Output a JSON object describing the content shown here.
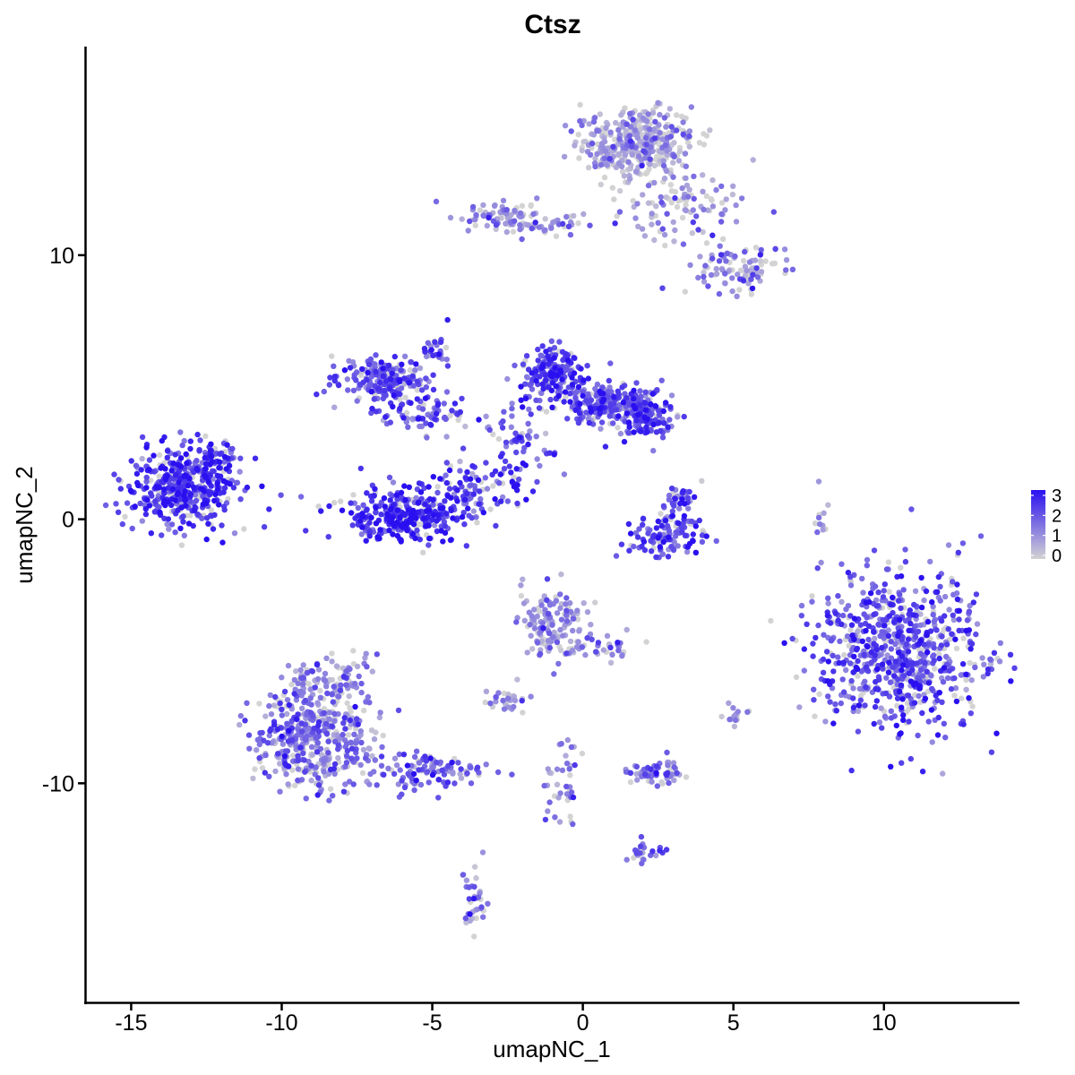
{
  "chart_data": {
    "type": "scatter",
    "title": "Ctsz",
    "xlabel": "umapNC_1",
    "ylabel": "umapNC_2",
    "xlim": [
      -16.5,
      14.5
    ],
    "ylim": [
      -18.3,
      17.9
    ],
    "x_ticks": [
      -15,
      -10,
      -5,
      0,
      5,
      10
    ],
    "x_tick_labels": [
      "-15",
      "-10",
      "-5",
      "0",
      "5",
      "10"
    ],
    "y_ticks": [
      -10,
      0,
      10
    ],
    "y_tick_labels": [
      "-10",
      "0",
      "10"
    ],
    "grid": false,
    "legend": {
      "placement": "right",
      "labels": [
        "3",
        "2",
        "1",
        "0"
      ],
      "values": [
        3,
        2,
        1,
        0
      ]
    },
    "color_scale": {
      "low": "#d3d3d3",
      "high": "#2a10f0",
      "min": 0,
      "max": 3
    },
    "clusters": [
      {
        "cx": -13.3,
        "cy": 1.2,
        "sx": 1.0,
        "sy": 0.75,
        "n": 420,
        "mean": 2.3
      },
      {
        "cx": -12.4,
        "cy": 2.2,
        "sx": 0.5,
        "sy": 0.4,
        "n": 40,
        "mean": 2.0
      },
      {
        "cx": -6.5,
        "cy": 5.2,
        "sx": 0.8,
        "sy": 0.45,
        "n": 200,
        "mean": 1.9
      },
      {
        "cx": -5.3,
        "cy": 4.0,
        "sx": 0.7,
        "sy": 0.35,
        "n": 70,
        "mean": 1.8
      },
      {
        "cx": -4.9,
        "cy": 6.4,
        "sx": 0.25,
        "sy": 0.5,
        "n": 25,
        "mean": 2.0
      },
      {
        "cx": -5.9,
        "cy": 0.2,
        "sx": 1.1,
        "sy": 0.55,
        "n": 330,
        "mean": 2.4
      },
      {
        "cx": -3.9,
        "cy": 1.1,
        "sx": 0.4,
        "sy": 0.6,
        "n": 60,
        "mean": 2.2
      },
      {
        "cx": -1.0,
        "cy": 5.5,
        "sx": 0.5,
        "sy": 0.5,
        "n": 180,
        "mean": 2.2
      },
      {
        "cx": 0.6,
        "cy": 4.4,
        "sx": 0.7,
        "sy": 0.4,
        "n": 170,
        "mean": 2.0
      },
      {
        "cx": 2.0,
        "cy": 4.0,
        "sx": 0.55,
        "sy": 0.45,
        "n": 170,
        "mean": 2.0
      },
      {
        "cx": -2.0,
        "cy": 3.3,
        "sx": 0.7,
        "sy": 0.7,
        "n": 60,
        "mean": 2.0
      },
      {
        "cx": 2.8,
        "cy": -0.7,
        "sx": 0.7,
        "sy": 0.35,
        "n": 110,
        "mean": 1.9
      },
      {
        "cx": 3.2,
        "cy": 0.6,
        "sx": 0.3,
        "sy": 0.4,
        "n": 40,
        "mean": 1.9
      },
      {
        "cx": 1.8,
        "cy": 14.2,
        "sx": 0.9,
        "sy": 0.65,
        "n": 430,
        "mean": 0.6
      },
      {
        "cx": 3.2,
        "cy": 11.8,
        "sx": 1.1,
        "sy": 0.6,
        "n": 90,
        "mean": 0.7
      },
      {
        "cx": 5.3,
        "cy": 9.5,
        "sx": 0.8,
        "sy": 0.5,
        "n": 100,
        "mean": 1.2
      },
      {
        "cx": -2.5,
        "cy": 11.4,
        "sx": 0.7,
        "sy": 0.3,
        "n": 80,
        "mean": 1.0
      },
      {
        "cx": -0.8,
        "cy": 11.1,
        "sx": 0.8,
        "sy": 0.25,
        "n": 30,
        "mean": 1.0
      },
      {
        "cx": 10.4,
        "cy": -5.0,
        "sx": 1.4,
        "sy": 1.5,
        "n": 750,
        "mean": 1.9
      },
      {
        "cx": -8.9,
        "cy": -8.4,
        "sx": 1.0,
        "sy": 0.9,
        "n": 420,
        "mean": 1.4
      },
      {
        "cx": -8.6,
        "cy": -6.3,
        "sx": 0.7,
        "sy": 0.6,
        "n": 120,
        "mean": 1.2
      },
      {
        "cx": -5.2,
        "cy": -9.5,
        "sx": 1.0,
        "sy": 0.4,
        "n": 110,
        "mean": 1.6
      },
      {
        "cx": -0.9,
        "cy": -4.0,
        "sx": 0.55,
        "sy": 0.7,
        "n": 140,
        "mean": 1.0
      },
      {
        "cx": 0.8,
        "cy": -4.8,
        "sx": 0.5,
        "sy": 0.3,
        "n": 30,
        "mean": 1.1
      },
      {
        "cx": 2.4,
        "cy": -9.6,
        "sx": 0.45,
        "sy": 0.2,
        "n": 60,
        "mean": 1.3
      },
      {
        "cx": -2.6,
        "cy": -6.9,
        "sx": 0.35,
        "sy": 0.25,
        "n": 30,
        "mean": 1.1
      },
      {
        "cx": -0.6,
        "cy": -10.0,
        "sx": 0.3,
        "sy": 0.8,
        "n": 40,
        "mean": 1.3
      },
      {
        "cx": 2.2,
        "cy": -12.6,
        "sx": 0.3,
        "sy": 0.25,
        "n": 25,
        "mean": 1.6
      },
      {
        "cx": -3.6,
        "cy": -14.6,
        "sx": 0.2,
        "sy": 0.6,
        "n": 35,
        "mean": 1.4
      },
      {
        "cx": 5.0,
        "cy": -7.3,
        "sx": 0.25,
        "sy": 0.25,
        "n": 15,
        "mean": 0.8
      },
      {
        "cx": 7.9,
        "cy": 0.2,
        "sx": 0.15,
        "sy": 0.6,
        "n": 12,
        "mean": 0.9
      },
      {
        "cx": -2.4,
        "cy": 1.4,
        "sx": 0.5,
        "sy": 0.6,
        "n": 30,
        "mean": 2.3
      },
      {
        "cx": -11.8,
        "cy": 2.6,
        "sx": 0.2,
        "sy": 0.2,
        "n": 10,
        "mean": 1.6
      }
    ]
  }
}
